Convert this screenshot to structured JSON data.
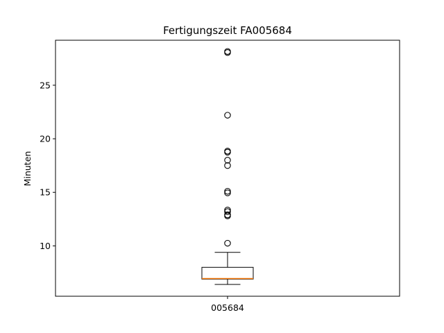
{
  "chart_data": {
    "type": "boxplot",
    "title": "Fertigungszeit FA005684",
    "ylabel": "Minuten",
    "xlabel": "",
    "categories": [
      "005684"
    ],
    "ylim": [
      5.3,
      29.2
    ],
    "yticks": [
      10,
      15,
      20,
      25
    ],
    "grid": false,
    "boxes": [
      {
        "category": "005684",
        "whisker_low": 6.4,
        "q1": 6.9,
        "median": 6.95,
        "q3": 8.0,
        "whisker_high": 9.4,
        "outliers": [
          10.25,
          12.8,
          12.9,
          13.2,
          13.35,
          14.95,
          15.1,
          17.5,
          18.0,
          18.75,
          18.85,
          22.2,
          28.05,
          28.15
        ]
      }
    ],
    "colors": {
      "box": "#000000",
      "median": "#ff7f0e",
      "outlier": "#000000",
      "background": "#ffffff"
    }
  }
}
